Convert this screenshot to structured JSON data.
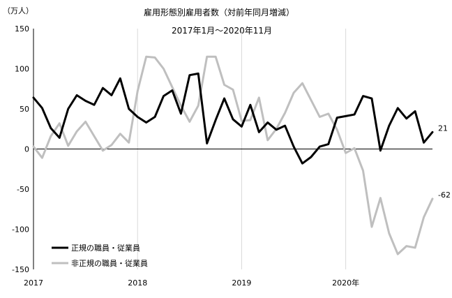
{
  "chart_data": {
    "type": "line",
    "title": "雇用形態別雇用者数（対前年同月増減）",
    "subtitle": "2017年1月～2020年11月",
    "unit_label": "（万人）",
    "xlabel": "",
    "ylabel": "",
    "ylim": [
      -150,
      150
    ],
    "yticks": [
      150,
      100,
      50,
      0,
      -50,
      -100,
      -150
    ],
    "ytick_labels": [
      "150",
      "100",
      "50",
      "0",
      "-50",
      "-100",
      "-150"
    ],
    "xticks": [
      {
        "x": "2017-01",
        "label": "2017"
      },
      {
        "x": "2018-01",
        "label": "2018"
      },
      {
        "x": "2019-01",
        "label": "2019"
      },
      {
        "x": "2020-01",
        "label": "2020年"
      }
    ],
    "grid": "vertical at year starts",
    "legend_position": "bottom-left",
    "x": [
      "2017-01",
      "2017-02",
      "2017-03",
      "2017-04",
      "2017-05",
      "2017-06",
      "2017-07",
      "2017-08",
      "2017-09",
      "2017-10",
      "2017-11",
      "2017-12",
      "2018-01",
      "2018-02",
      "2018-03",
      "2018-04",
      "2018-05",
      "2018-06",
      "2018-07",
      "2018-08",
      "2018-09",
      "2018-10",
      "2018-11",
      "2018-12",
      "2019-01",
      "2019-02",
      "2019-03",
      "2019-04",
      "2019-05",
      "2019-06",
      "2019-07",
      "2019-08",
      "2019-09",
      "2019-10",
      "2019-11",
      "2019-12",
      "2020-01",
      "2020-02",
      "2020-03",
      "2020-04",
      "2020-05",
      "2020-06",
      "2020-07",
      "2020-08",
      "2020-09",
      "2020-10",
      "2020-11"
    ],
    "series": [
      {
        "name": "正規の職員・従業員",
        "color": "#000000",
        "values": [
          64,
          51,
          26,
          14,
          50,
          67,
          60,
          55,
          76,
          67,
          88,
          50,
          40,
          33,
          40,
          66,
          73,
          44,
          92,
          94,
          7,
          36,
          63,
          37,
          28,
          55,
          21,
          33,
          24,
          29,
          3,
          -18,
          -10,
          3,
          6,
          39,
          41,
          43,
          66,
          63,
          -2,
          29,
          51,
          38,
          47,
          8,
          21
        ],
        "end_label": "21"
      },
      {
        "name": "非正規の職員・従業員",
        "color": "#bfbfbf",
        "values": [
          3,
          -11,
          16,
          32,
          4,
          22,
          34,
          16,
          -2,
          5,
          19,
          8,
          72,
          115,
          114,
          100,
          77,
          54,
          34,
          54,
          115,
          115,
          80,
          74,
          35,
          36,
          64,
          11,
          25,
          45,
          70,
          82,
          61,
          40,
          44,
          24,
          -5,
          1,
          -27,
          -97,
          -61,
          -105,
          -131,
          -121,
          -123,
          -85,
          -62
        ],
        "end_label": "-62"
      }
    ]
  }
}
